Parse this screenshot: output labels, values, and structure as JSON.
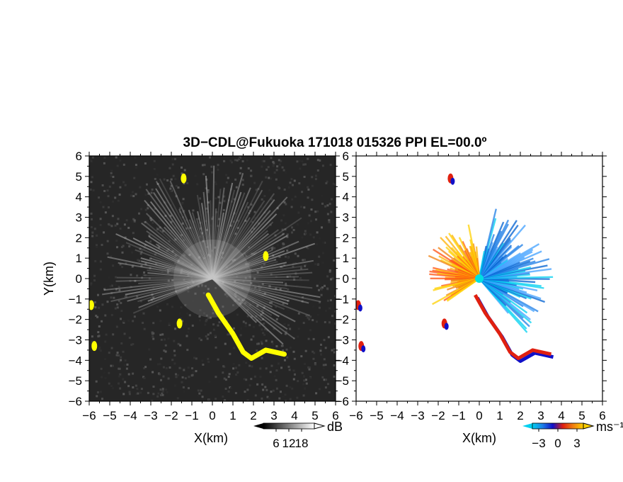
{
  "chart_data": [
    {
      "type": "heatmap",
      "panel": "reflectivity",
      "title": "3D−CDL@Fukuoka 171018 015326 PPI EL=00.0º",
      "xlabel": "X(km)",
      "ylabel": "Y(km)",
      "xlim": [
        -6,
        6
      ],
      "ylim": [
        -6,
        6
      ],
      "x_ticks": [
        "−6",
        "−5",
        "−4",
        "−3",
        "−2",
        "−1",
        "0",
        "1",
        "2",
        "3",
        "4",
        "5",
        "6"
      ],
      "y_ticks": [
        "6",
        "5",
        "4",
        "3",
        "2",
        "1",
        "0",
        "−1",
        "−2",
        "−3",
        "−4",
        "−5",
        "−6"
      ],
      "colorbar": {
        "unit": "dB",
        "ticks": [
          "6",
          "12",
          "18"
        ],
        "range": [
          0,
          24
        ],
        "colormap": "grayscale"
      },
      "colors": {
        "background": "#262626",
        "beam": "#c8c8c8",
        "highlight": "#ffff00"
      },
      "features": [
        {
          "kind": "radial_beams",
          "center": [
            0,
            0
          ],
          "az_from_deg": -45,
          "az_to_deg": 205,
          "range_km": 5.5,
          "level_db": 18
        },
        {
          "kind": "highlight_band",
          "points": [
            [
              -0.2,
              -0.8
            ],
            [
              0.3,
              -1.7
            ],
            [
              1.0,
              -2.7
            ],
            [
              1.5,
              -3.6
            ],
            [
              1.9,
              -3.9
            ],
            [
              2.6,
              -3.5
            ],
            [
              3.5,
              -3.7
            ]
          ]
        },
        {
          "kind": "highlight_spot",
          "center": [
            -5.9,
            -1.3
          ]
        },
        {
          "kind": "highlight_spot",
          "center": [
            -5.75,
            -3.3
          ]
        },
        {
          "kind": "highlight_spot",
          "center": [
            -1.4,
            4.9
          ]
        },
        {
          "kind": "highlight_spot",
          "center": [
            2.6,
            1.1
          ]
        },
        {
          "kind": "highlight_spot",
          "center": [
            -1.6,
            -2.2
          ]
        }
      ]
    },
    {
      "type": "heatmap",
      "panel": "doppler_velocity",
      "xlabel": "X(km)",
      "xlim": [
        -6,
        6
      ],
      "ylim": [
        -6,
        6
      ],
      "x_ticks": [
        "−6",
        "−5",
        "−4",
        "−3",
        "−2",
        "−1",
        "0",
        "1",
        "2",
        "3",
        "4",
        "5",
        "6"
      ],
      "y_ticks": [
        "6",
        "5",
        "4",
        "3",
        "2",
        "1",
        "0",
        "−1",
        "−2",
        "−3",
        "−4",
        "−5",
        "−6"
      ],
      "colorbar": {
        "unit": "ms⁻¹",
        "ticks": [
          "−3",
          "0",
          "3"
        ],
        "range": [
          -4,
          4
        ],
        "colormap": "cyan-blue-red-yellow"
      },
      "colors": {
        "background": "#ffffff",
        "negative": "#1e7ee6",
        "near_zero_neg": "#1010c8",
        "near_zero_pos": "#e02010",
        "positive": "#f08010",
        "strong_positive": "#ffd000"
      },
      "features": [
        {
          "kind": "approaching_sector",
          "center": [
            0,
            0
          ],
          "az_from_deg": -50,
          "az_to_deg": 80,
          "range_km": 3.6,
          "velocity": -2.5
        },
        {
          "kind": "receding_sector",
          "center": [
            0,
            0
          ],
          "az_from_deg": 95,
          "az_to_deg": 215,
          "range_km": 2.8,
          "velocity": 2.5
        },
        {
          "kind": "shear_band",
          "points": [
            [
              -0.2,
              -0.8
            ],
            [
              0.3,
              -1.7
            ],
            [
              1.0,
              -2.7
            ],
            [
              1.5,
              -3.6
            ],
            [
              1.9,
              -3.9
            ],
            [
              2.6,
              -3.5
            ],
            [
              3.5,
              -3.7
            ]
          ]
        },
        {
          "kind": "shear_spot",
          "center": [
            -5.9,
            -1.3
          ]
        },
        {
          "kind": "shear_spot",
          "center": [
            -5.75,
            -3.3
          ]
        },
        {
          "kind": "shear_spot",
          "center": [
            -1.4,
            4.9
          ]
        },
        {
          "kind": "shear_spot",
          "center": [
            -1.7,
            -2.2
          ]
        }
      ]
    }
  ]
}
